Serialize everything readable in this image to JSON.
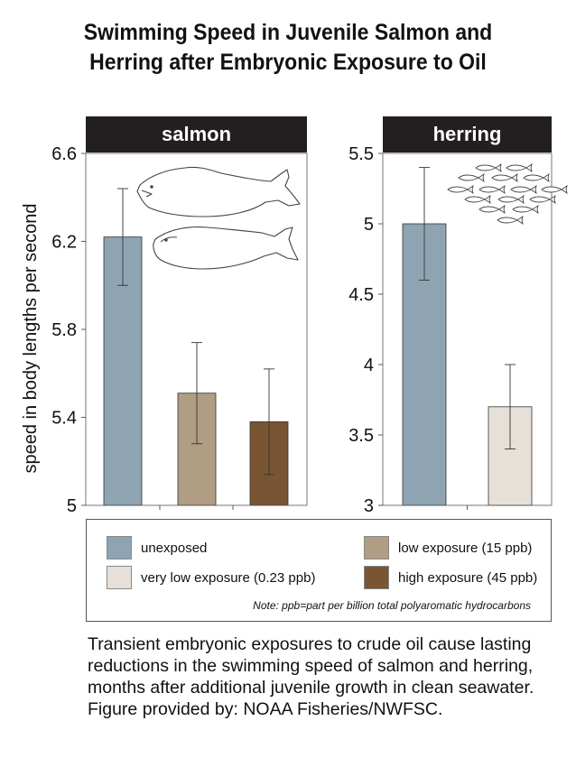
{
  "title": {
    "line1": "Swimming Speed in Juvenile Salmon and",
    "line2": "Herring after Embryonic Exposure to Oil"
  },
  "colors": {
    "unexposed": "#8fa4b3",
    "very_low": "#e6e0d8",
    "low": "#b09d84",
    "high": "#7a5533"
  },
  "icons": {
    "salmon_panel": "salmon-fish-outline-icon",
    "herring_panel": "herring-school-icon"
  },
  "chart_data": [
    {
      "type": "bar",
      "panel_title": "salmon",
      "ylabel": "speed in body lengths per second",
      "ylim": [
        5,
        6.6
      ],
      "yticks": [
        "5",
        "5.4",
        "5.8",
        "6.2",
        "6.6"
      ],
      "ytick_values": [
        5,
        5.4,
        5.8,
        6.2,
        6.6
      ],
      "categories": [
        "unexposed",
        "low exposure (15 ppb)",
        "high exposure (45 ppb)"
      ],
      "values": [
        6.22,
        5.51,
        5.38
      ],
      "errors": [
        0.22,
        0.23,
        0.24
      ],
      "grid": false
    },
    {
      "type": "bar",
      "panel_title": "herring",
      "ylabel": "",
      "ylim": [
        3,
        5.5
      ],
      "yticks": [
        "3",
        "3.5",
        "4",
        "4.5",
        "5",
        "5.5"
      ],
      "ytick_values": [
        3,
        3.5,
        4,
        4.5,
        5,
        5.5
      ],
      "categories": [
        "unexposed",
        "very low exposure (0.23 ppb)"
      ],
      "values": [
        5.0,
        3.7
      ],
      "errors": [
        0.4,
        0.3
      ],
      "grid": false
    }
  ],
  "legend": {
    "items": [
      {
        "label": "unexposed",
        "color_key": "unexposed"
      },
      {
        "label": "very low exposure (0.23 ppb)",
        "color_key": "very_low"
      },
      {
        "label": "low exposure (15 ppb)",
        "color_key": "low"
      },
      {
        "label": "high exposure (45 ppb)",
        "color_key": "high"
      }
    ],
    "note": "Note: ppb=part per billion total polyaromatic hydrocarbons"
  },
  "caption": {
    "line1": "Transient embryonic exposures to crude oil cause lasting",
    "line2": "reductions in the swimming speed of salmon and herring,",
    "line3": "months after additional juvenile growth in clean seawater.",
    "line4": "Figure provided by: NOAA Fisheries/NWFSC."
  }
}
